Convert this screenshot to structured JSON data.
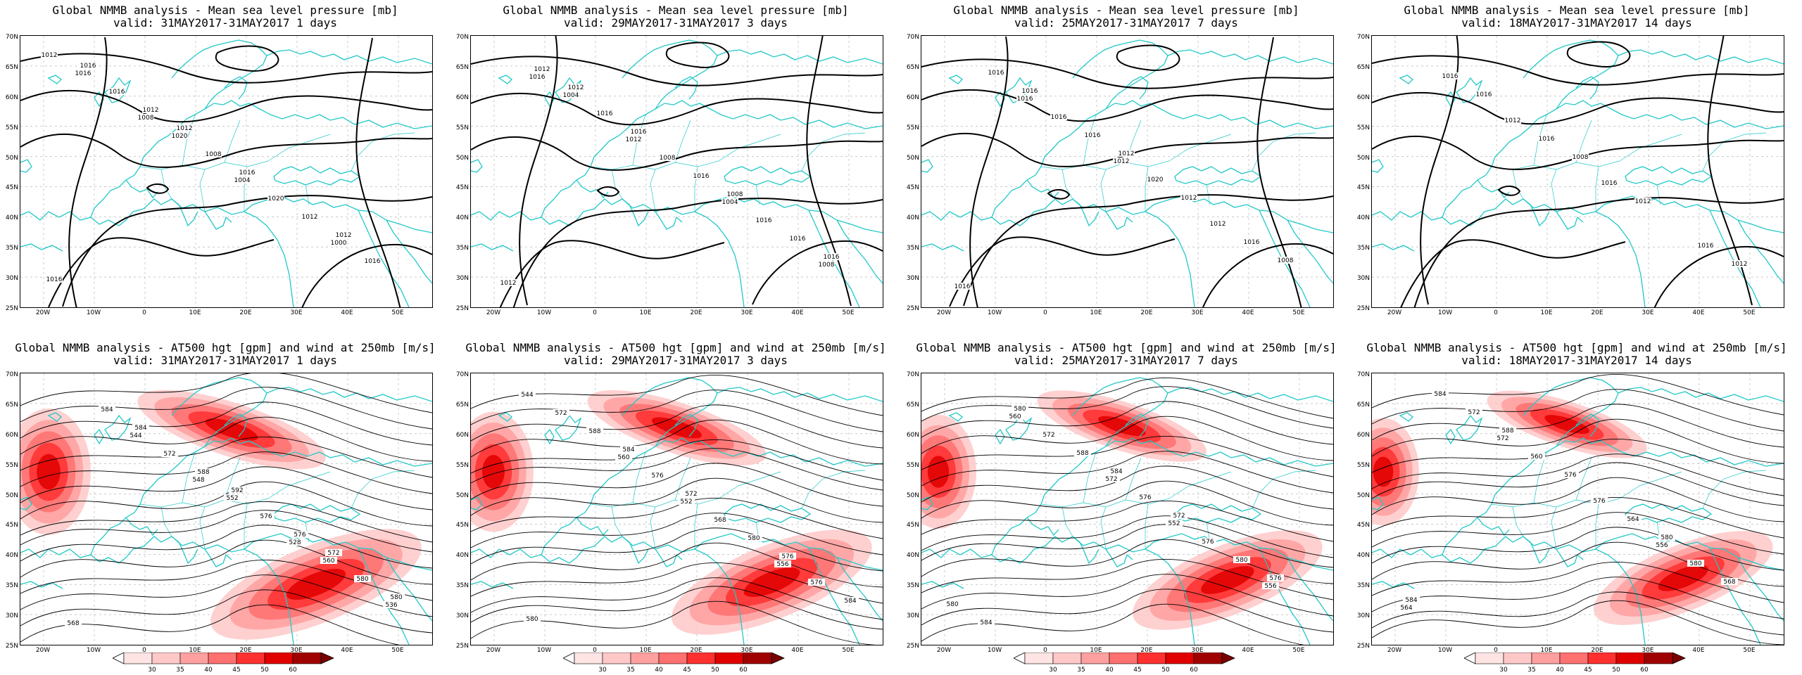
{
  "lat_ticks": [
    "70N",
    "65N",
    "60N",
    "55N",
    "50N",
    "45N",
    "40N",
    "35N",
    "30N",
    "25N"
  ],
  "lon_ticks": [
    "20W",
    "10W",
    "0",
    "10E",
    "20E",
    "30E",
    "40E",
    "50E"
  ],
  "colorbar": {
    "levels": [
      "30",
      "35",
      "40",
      "45",
      "50",
      "60"
    ],
    "colors": [
      "#ffe4e4",
      "#ffc8c8",
      "#ffa0a0",
      "#ff7070",
      "#ff3030",
      "#e00000",
      "#a00000"
    ]
  },
  "panels": [
    {
      "id": "mslp-1d",
      "kind": "mslp",
      "title": "Global NMMB analysis - Mean sea level pressure [mb]",
      "valid": "valid: 31MAY2017-31MAY2017   1 days",
      "contour_labels": [
        "1012",
        "1008",
        "1004",
        "1000",
        "1016",
        "1020",
        "1020",
        "1016",
        "1016",
        "1008",
        "1012",
        "1016",
        "1012",
        "1016",
        "1012",
        "1016",
        "1012"
      ]
    },
    {
      "id": "mslp-3d",
      "kind": "mslp",
      "title": "Global NMMB analysis - Mean sea level pressure [mb]",
      "valid": "valid: 29MAY2017-31MAY2017   3 days",
      "contour_labels": [
        "1016",
        "1012",
        "1004",
        "1008",
        "1004",
        "1008",
        "1016",
        "1012",
        "1016",
        "1016",
        "1016",
        "1012",
        "1016",
        "1008",
        "1016",
        "1012"
      ]
    },
    {
      "id": "mslp-7d",
      "kind": "mslp",
      "title": "Global NMMB analysis - Mean sea level pressure [mb]",
      "valid": "valid: 25MAY2017-31MAY2017   7 days",
      "contour_labels": [
        "1016",
        "1012",
        "1012",
        "1016",
        "1016",
        "1020",
        "1016",
        "1016",
        "1016",
        "1012",
        "1008",
        "1016",
        "1012"
      ]
    },
    {
      "id": "mslp-14d",
      "kind": "mslp",
      "title": "Global NMMB analysis - Mean sea level pressure [mb]",
      "valid": "valid: 18MAY2017-31MAY2017   14 days",
      "contour_labels": [
        "1012",
        "1016",
        "1016",
        "1016",
        "1016",
        "1012",
        "1012",
        "1016",
        "1008"
      ]
    },
    {
      "id": "z500-1d",
      "kind": "z500",
      "title": "Global NMMB analysis - AT500 hgt [gpm] and wind at 250mb [m/s]",
      "valid": "valid: 31MAY2017-31MAY2017   1 days",
      "contour_labels": [
        "548",
        "528",
        "536",
        "544",
        "552",
        "560",
        "568",
        "572",
        "576",
        "580",
        "584",
        "588",
        "576",
        "580",
        "584",
        "592",
        "572"
      ]
    },
    {
      "id": "z500-3d",
      "kind": "z500",
      "title": "Global NMMB analysis - AT500 hgt [gpm] and wind at 250mb [m/s]",
      "valid": "valid: 29MAY2017-31MAY2017   3 days",
      "contour_labels": [
        "552",
        "556",
        "544",
        "560",
        "568",
        "576",
        "572",
        "576",
        "580",
        "584",
        "588",
        "572",
        "576",
        "580",
        "584"
      ]
    },
    {
      "id": "z500-7d",
      "kind": "z500",
      "title": "Global NMMB analysis - AT500 hgt [gpm] and wind at 250mb [m/s]",
      "valid": "valid: 25MAY2017-31MAY2017   7 days",
      "contour_labels": [
        "552",
        "556",
        "560",
        "572",
        "576",
        "580",
        "572",
        "576",
        "580",
        "584",
        "588",
        "572",
        "576",
        "580",
        "584"
      ]
    },
    {
      "id": "z500-14d",
      "kind": "z500",
      "title": "Global NMMB analysis - AT500 hgt [gpm] and wind at 250mb [m/s]",
      "valid": "valid: 18MAY2017-31MAY2017   14 days",
      "contour_labels": [
        "556",
        "564",
        "572",
        "576",
        "580",
        "584",
        "560",
        "564",
        "568",
        "572",
        "576",
        "580",
        "584",
        "588"
      ]
    }
  ]
}
